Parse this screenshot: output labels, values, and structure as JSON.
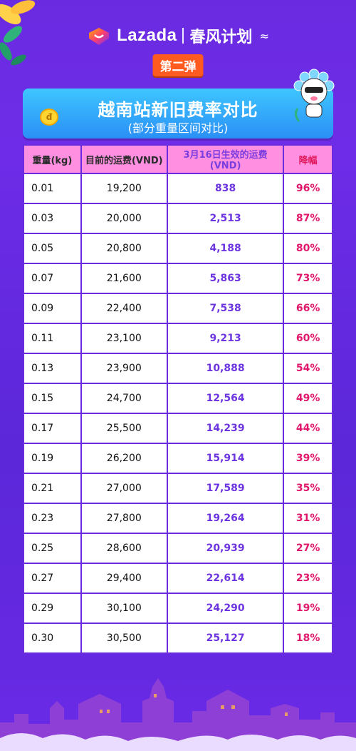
{
  "header": {
    "brand": "Lazada",
    "campaign": "春风计划",
    "phase_badge": "第二弹"
  },
  "title_panel": {
    "title": "越南站新旧费率对比",
    "subtitle": "(部分重量区间对比)"
  },
  "table": {
    "headers": [
      "重量(kg)",
      "目前的运费(VND)",
      "3月16日生效的运费(VND)",
      "降幅"
    ],
    "rows": [
      {
        "weight": "0.01",
        "old": "19,200",
        "new": "838",
        "drop": "96%"
      },
      {
        "weight": "0.03",
        "old": "20,000",
        "new": "2,513",
        "drop": "87%"
      },
      {
        "weight": "0.05",
        "old": "20,800",
        "new": "4,188",
        "drop": "80%"
      },
      {
        "weight": "0.07",
        "old": "21,600",
        "new": "5,863",
        "drop": "73%"
      },
      {
        "weight": "0.09",
        "old": "22,400",
        "new": "7,538",
        "drop": "66%"
      },
      {
        "weight": "0.11",
        "old": "23,100",
        "new": "9,213",
        "drop": "60%"
      },
      {
        "weight": "0.13",
        "old": "23,900",
        "new": "10,888",
        "drop": "54%"
      },
      {
        "weight": "0.15",
        "old": "24,700",
        "new": "12,564",
        "drop": "49%"
      },
      {
        "weight": "0.17",
        "old": "25,500",
        "new": "14,239",
        "drop": "44%"
      },
      {
        "weight": "0.19",
        "old": "26,200",
        "new": "15,914",
        "drop": "39%"
      },
      {
        "weight": "0.21",
        "old": "27,000",
        "new": "17,589",
        "drop": "35%"
      },
      {
        "weight": "0.23",
        "old": "27,800",
        "new": "19,264",
        "drop": "31%"
      },
      {
        "weight": "0.25",
        "old": "28,600",
        "new": "20,939",
        "drop": "27%"
      },
      {
        "weight": "0.27",
        "old": "29,400",
        "new": "22,614",
        "drop": "23%"
      },
      {
        "weight": "0.29",
        "old": "30,100",
        "new": "24,290",
        "drop": "19%"
      },
      {
        "weight": "0.30",
        "old": "30,500",
        "new": "25,127",
        "drop": "18%"
      }
    ]
  },
  "icons": {
    "logo": "lazada-heart-icon",
    "coin": "coin-icon",
    "mascot": "mascot-icon",
    "leaves": "leaves-decoration-icon",
    "city": "city-skyline-icon"
  },
  "colors": {
    "background": "#6a2be0",
    "header_row": "#ff8fe0",
    "new_price": "#6d35e0",
    "drop": "#e0176a",
    "badge": "#ff5a1f",
    "title_panel": "#2a8ff6"
  }
}
